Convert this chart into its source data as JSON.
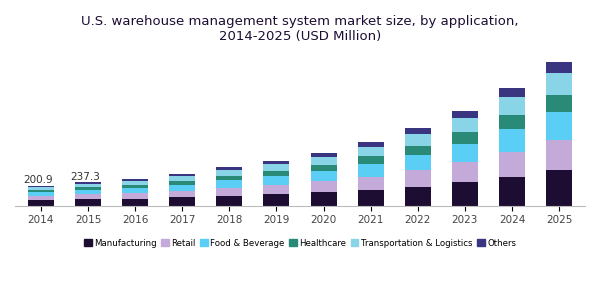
{
  "title": "U.S. warehouse management system market size, by application,\n2014-2025 (USD Million)",
  "years": [
    2014,
    2015,
    2016,
    2017,
    2018,
    2019,
    2020,
    2021,
    2022,
    2023,
    2024,
    2025
  ],
  "segments": {
    "Manufacturing": [
      55,
      65,
      72,
      85,
      100,
      115,
      135,
      162,
      195,
      240,
      295,
      360
    ],
    "Retail": [
      42,
      50,
      57,
      68,
      82,
      96,
      112,
      135,
      165,
      200,
      250,
      305
    ],
    "Food & Beverage": [
      38,
      46,
      52,
      63,
      76,
      90,
      104,
      126,
      154,
      187,
      233,
      283
    ],
    "Healthcare": [
      22,
      27,
      31,
      38,
      46,
      55,
      64,
      78,
      96,
      118,
      147,
      179
    ],
    "Transportation & Logistics": [
      30,
      35,
      40,
      48,
      58,
      69,
      80,
      97,
      118,
      145,
      180,
      219
    ],
    "Others": [
      14,
      14,
      18,
      23,
      28,
      35,
      38,
      47,
      59,
      77,
      92,
      112
    ]
  },
  "totals": [
    200.9,
    237.3,
    270,
    325,
    390,
    460,
    533,
    645,
    787,
    967,
    1197,
    1458
  ],
  "colors": {
    "Manufacturing": "#1e0d33",
    "Retail": "#c4aad8",
    "Food & Beverage": "#5bcef5",
    "Healthcare": "#2a8a78",
    "Transportation & Logistics": "#8ad4e8",
    "Others": "#3a3580"
  },
  "legend_labels": [
    "Manufacturing",
    "Retail",
    "Food & Beverage",
    "Healthcare",
    "Transportation & Logistics",
    "Others"
  ],
  "bar_width": 0.55,
  "annotation_years": [
    2014,
    2015
  ],
  "annotation_values": [
    "200.9",
    "237.3"
  ],
  "title_color": "#1e0d33",
  "title_fontsize": 9.5,
  "background_color": "#ffffff",
  "header_bar_color": "#5c2d82",
  "ylim": [
    0,
    1600
  ]
}
